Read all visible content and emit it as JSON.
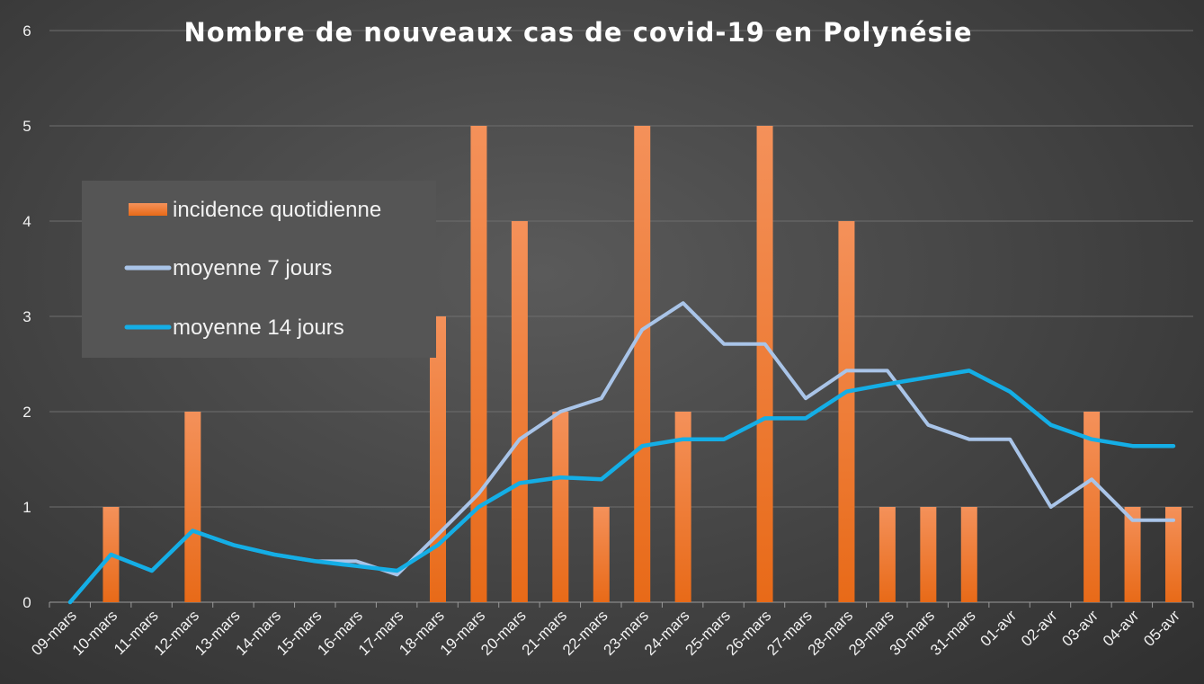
{
  "chart_data": {
    "type": "bar",
    "title": "Nombre de nouveaux cas de covid-19 en Polynésie",
    "xlabel": "",
    "ylabel": "",
    "ylim": [
      0,
      6
    ],
    "yticks": [
      "0",
      "1",
      "2",
      "3",
      "4",
      "5",
      "6"
    ],
    "grid": true,
    "legend_position": "upper-left",
    "categories": [
      "09-mars",
      "10-mars",
      "11-mars",
      "12-mars",
      "13-mars",
      "14-mars",
      "15-mars",
      "16-mars",
      "17-mars",
      "18-mars",
      "19-mars",
      "20-mars",
      "21-mars",
      "22-mars",
      "23-mars",
      "24-mars",
      "25-mars",
      "26-mars",
      "27-mars",
      "28-mars",
      "29-mars",
      "30-mars",
      "31-mars",
      "01-avr",
      "02-avr",
      "03-avr",
      "04-avr",
      "05-avr"
    ],
    "series": [
      {
        "name": "incidence quotidienne",
        "kind": "bar",
        "color": "#ed7d31",
        "values": [
          0,
          1,
          0,
          2,
          0,
          0,
          0,
          0,
          0,
          3,
          5,
          4,
          2,
          1,
          5,
          2,
          0,
          5,
          0,
          4,
          1,
          1,
          1,
          0,
          0,
          2,
          1,
          1
        ]
      },
      {
        "name": "moyenne 7 jours",
        "kind": "line",
        "color": "#a9c4e8",
        "values": [
          0,
          0.5,
          0.33,
          0.75,
          0.6,
          0.5,
          0.43,
          0.43,
          0.29,
          0.71,
          1.14,
          1.71,
          2.0,
          2.14,
          2.86,
          3.14,
          2.71,
          2.71,
          2.14,
          2.43,
          2.43,
          1.86,
          1.71,
          1.71,
          1.0,
          1.29,
          0.86,
          0.86
        ]
      },
      {
        "name": "moyenne 14 jours",
        "kind": "line",
        "color": "#14aee6",
        "values": [
          0,
          0.5,
          0.33,
          0.75,
          0.6,
          0.5,
          0.43,
          0.38,
          0.33,
          0.6,
          1.0,
          1.25,
          1.31,
          1.29,
          1.64,
          1.71,
          1.71,
          1.93,
          1.93,
          2.21,
          2.29,
          2.36,
          2.43,
          2.21,
          1.86,
          1.71,
          1.64,
          1.64
        ]
      }
    ]
  }
}
